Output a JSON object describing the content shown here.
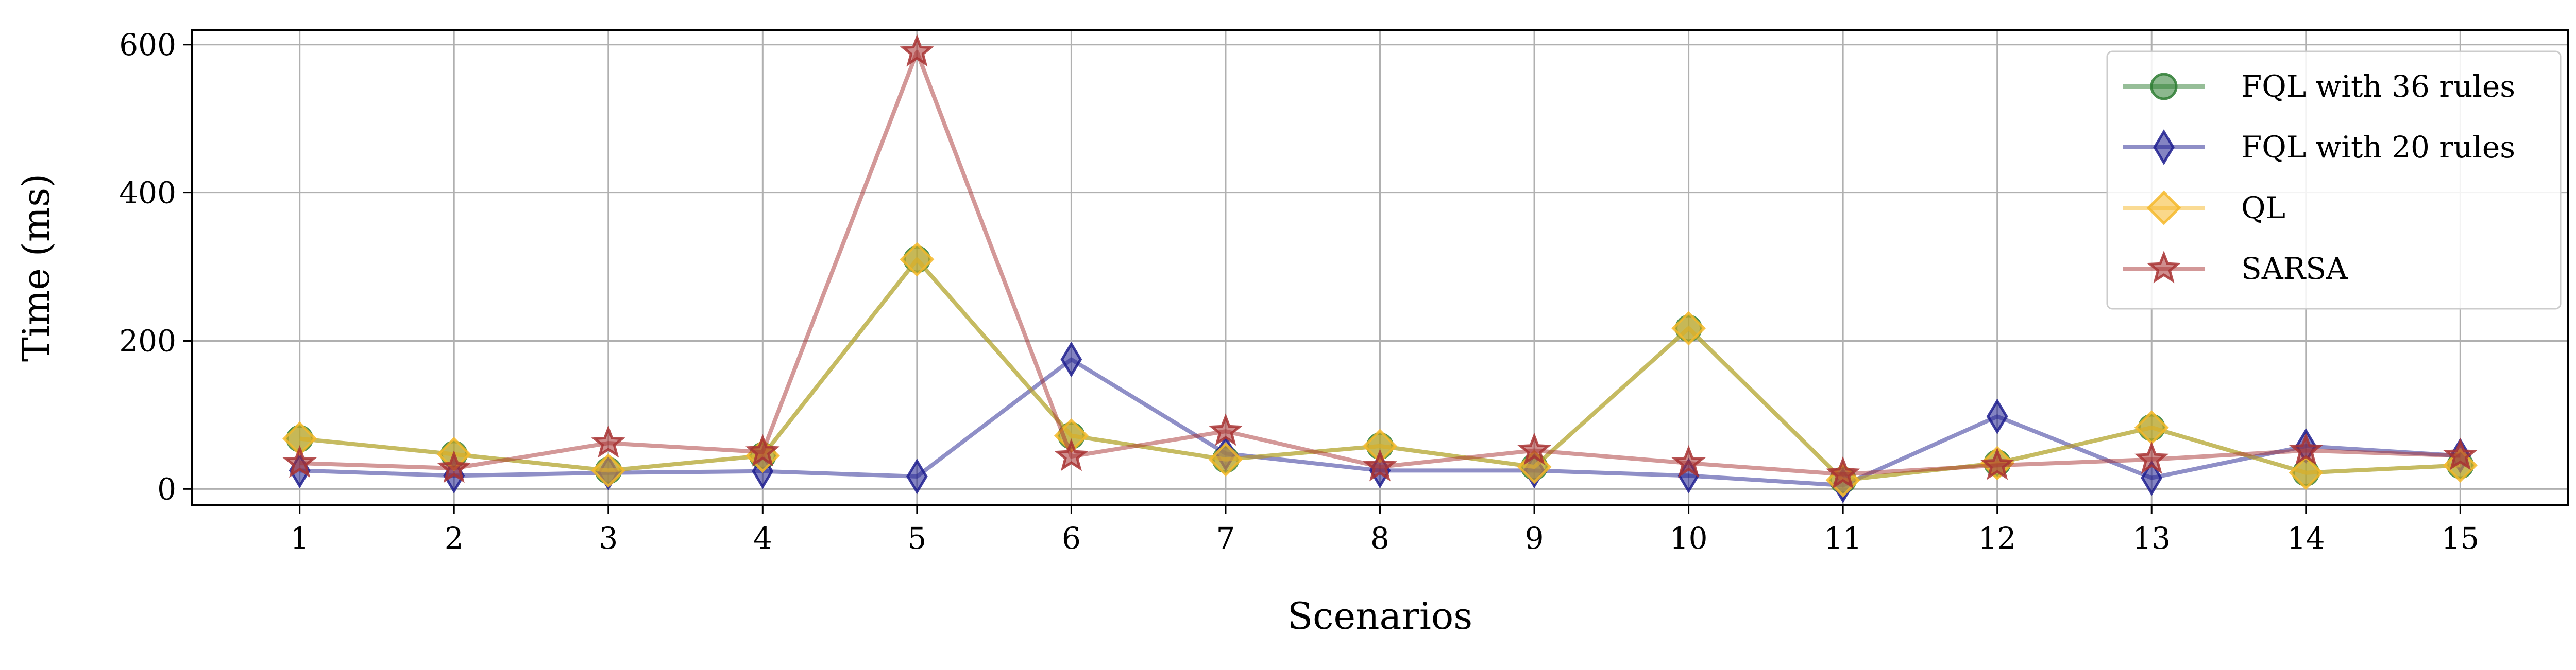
{
  "chart_data": {
    "type": "line",
    "title": "",
    "xlabel": "Scenarios",
    "ylabel": "Time (ms)",
    "categories": [
      "1",
      "2",
      "3",
      "4",
      "5",
      "6",
      "7",
      "8",
      "9",
      "10",
      "11",
      "12",
      "13",
      "14",
      "15"
    ],
    "x": [
      1,
      2,
      3,
      4,
      5,
      6,
      7,
      8,
      9,
      10,
      11,
      12,
      13,
      14,
      15
    ],
    "xlim": [
      0.3,
      15.7
    ],
    "ylim": [
      -22,
      620
    ],
    "yticks": [
      0,
      200,
      400,
      600
    ],
    "grid": true,
    "legend_position": "top-right",
    "series": [
      {
        "name": "FQL with 36 rules",
        "marker": "circle",
        "color": "#2e7d32",
        "values": [
          68,
          47,
          25,
          45,
          310,
          72,
          40,
          58,
          30,
          217,
          12,
          35,
          83,
          22,
          32
        ]
      },
      {
        "name": "FQL with 20 rules",
        "marker": "thin_diamond",
        "color": "#1f1f8f",
        "values": [
          25,
          18,
          22,
          24,
          17,
          175,
          48,
          25,
          25,
          18,
          5,
          98,
          15,
          58,
          45
        ]
      },
      {
        "name": "QL",
        "marker": "diamond",
        "color": "#f5b82a",
        "values": [
          68,
          47,
          25,
          45,
          310,
          72,
          40,
          58,
          30,
          217,
          12,
          35,
          83,
          22,
          32
        ]
      },
      {
        "name": "SARSA",
        "marker": "star",
        "color": "#a83232",
        "values": [
          35,
          28,
          62,
          50,
          590,
          44,
          78,
          30,
          52,
          35,
          20,
          32,
          40,
          52,
          45
        ]
      }
    ]
  }
}
